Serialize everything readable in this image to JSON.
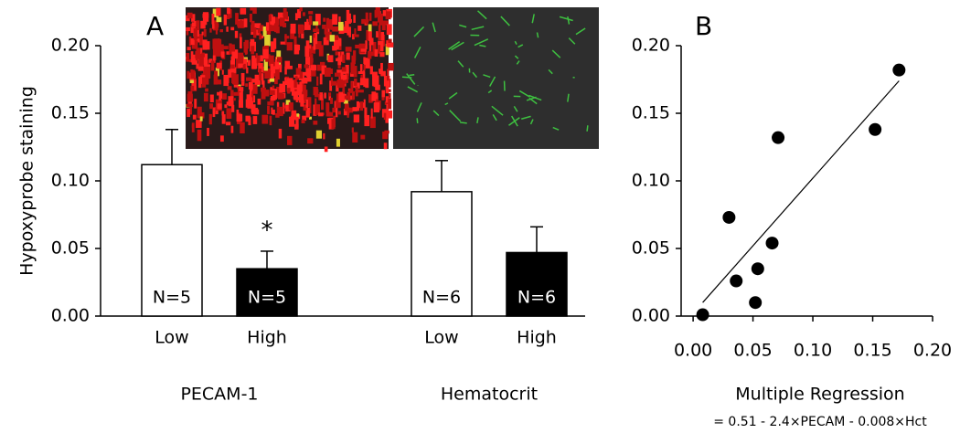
{
  "chart_data": [
    {
      "type": "bar",
      "panel_label": "A",
      "ylabel": "Hypoxyprobe staining",
      "categories": [
        "Low",
        "High",
        "Low",
        "High"
      ],
      "groups": [
        "PECAM-1",
        "Hematocrit"
      ],
      "values": [
        0.112,
        0.035,
        0.092,
        0.047
      ],
      "errors": [
        0.026,
        0.013,
        0.023,
        0.019
      ],
      "colors": [
        "#ffffff",
        "#000000",
        "#ffffff",
        "#000000"
      ],
      "bar_labels": [
        "N=5",
        "N=5",
        "N=6",
        "N=6"
      ],
      "annotation": {
        "text": "*",
        "category_index": 1
      },
      "ylim": [
        0,
        0.2
      ],
      "yticks": [
        {
          "value": 0,
          "label": "0.00"
        },
        0.05,
        {
          "value": 0.1,
          "label": "0.10"
        },
        0.15,
        {
          "value": 0.2,
          "label": "0.20"
        }
      ]
    },
    {
      "type": "scatter",
      "panel_label": "B",
      "xlabel": "Multiple Regression",
      "xlabel_note": "= 0.51 - 2.4×PECAM - 0.008×Hct",
      "x": [
        0.008,
        0.03,
        0.036,
        0.052,
        0.054,
        0.066,
        0.071,
        0.152,
        0.172
      ],
      "y": [
        0.001,
        0.073,
        0.026,
        0.01,
        0.035,
        0.054,
        0.132,
        0.138,
        0.182
      ],
      "color": "#000000",
      "fit_line": {
        "x": [
          0.008,
          0.172
        ],
        "y": [
          0.01,
          0.174
        ]
      },
      "xlim": [
        -0.01,
        0.2
      ],
      "ylim": [
        0,
        0.2
      ],
      "xticks": [
        {
          "value": 0,
          "label": "0.00"
        },
        0.05,
        {
          "value": 0.1,
          "label": "0.10"
        },
        0.15,
        {
          "value": 0.2,
          "label": "0.20"
        }
      ],
      "yticks": [
        {
          "value": 0,
          "label": "0.00"
        },
        0.05,
        {
          "value": 0.1,
          "label": "0.10"
        },
        0.15,
        {
          "value": 0.2,
          "label": "0.20"
        }
      ]
    }
  ]
}
